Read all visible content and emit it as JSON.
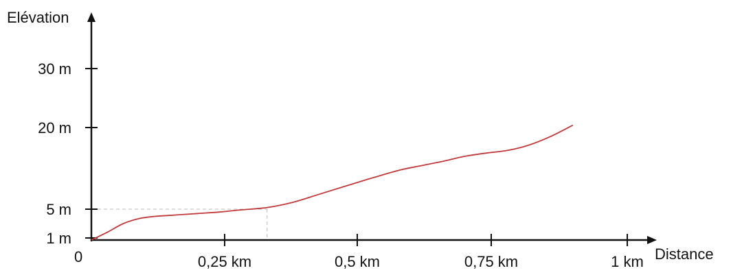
{
  "chart_data": {
    "type": "line",
    "xlabel": "Distance",
    "ylabel": "Elévation",
    "origin_label": "0",
    "xlim": [
      0,
      1
    ],
    "ylim": [
      0,
      40
    ],
    "x_ticks": [
      {
        "value": 0.25,
        "label": "0,25 km"
      },
      {
        "value": 0.5,
        "label": "0,5 km"
      },
      {
        "value": 0.75,
        "label": "0,75 km"
      },
      {
        "value": 1,
        "label": "1 km"
      }
    ],
    "y_ticks": [
      {
        "value": 1,
        "label": "1 m"
      },
      {
        "value": 5,
        "label": "5 m"
      },
      {
        "value": 20,
        "label": "20 m"
      },
      {
        "value": 30,
        "label": "30 m"
      }
    ],
    "guide_point": {
      "x": 0.33,
      "y": 5
    },
    "grid": false,
    "series": [
      {
        "color": "#c0393b",
        "x": [
          0,
          0.03,
          0.06,
          0.09,
          0.12,
          0.16,
          0.2,
          0.24,
          0.28,
          0.33,
          0.38,
          0.43,
          0.48,
          0.53,
          0.58,
          0.62,
          0.66,
          0.7,
          0.74,
          0.78,
          0.82,
          0.86,
          0.9
        ],
        "values": [
          0,
          1.8,
          3.0,
          3.7,
          4.0,
          4.2,
          4.4,
          4.6,
          4.9,
          5.3,
          6.3,
          7.8,
          9.3,
          10.8,
          12.2,
          13.0,
          13.8,
          14.7,
          15.3,
          15.8,
          16.8,
          18.4,
          20.4
        ]
      }
    ]
  }
}
